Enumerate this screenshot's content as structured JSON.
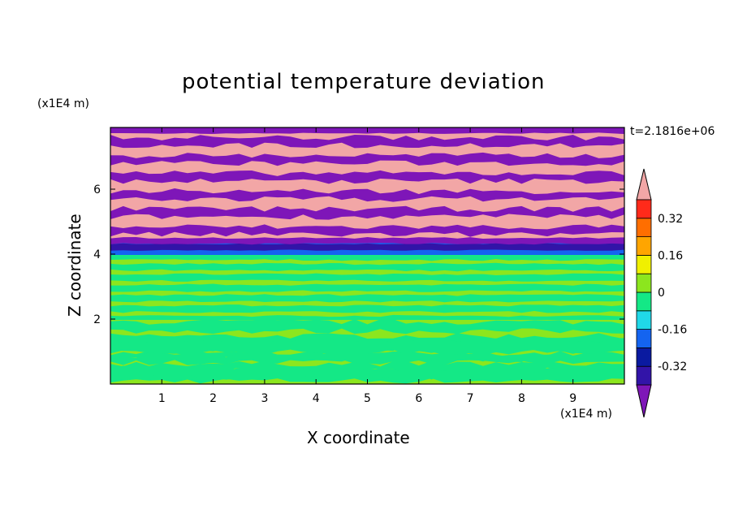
{
  "chart_data": {
    "type": "heatmap",
    "title": "potential temperature deviation",
    "xlabel": "X coordinate",
    "ylabel": "Z coordinate",
    "x_multiplier": "(x1E4 m)",
    "y_multiplier": "(x1E4 m)",
    "time_label": "t=2.1816e+06",
    "xlim": [
      0,
      10
    ],
    "ylim": [
      0,
      7.9
    ],
    "x_ticks": [
      "1",
      "2",
      "3",
      "4",
      "5",
      "6",
      "7",
      "8",
      "9"
    ],
    "y_ticks": [
      "2",
      "4",
      "6"
    ],
    "colorbar": {
      "labels": [
        "0.32",
        "0.16",
        "0",
        "-0.16",
        "-0.32"
      ],
      "levels": [
        -0.48,
        -0.4,
        -0.32,
        -0.24,
        -0.16,
        -0.08,
        0,
        0.08,
        0.16,
        0.24,
        0.32,
        0.4,
        0.48
      ],
      "colors": [
        "#7e16b8",
        "#3214a8",
        "#0a1aa0",
        "#1464f0",
        "#20d8e8",
        "#14e886",
        "#8ce61e",
        "#f0f000",
        "#ffa500",
        "#ff6e00",
        "#ff2a1a",
        "#f2a6a6"
      ],
      "extend": "both"
    },
    "field_summary": [
      {
        "z_range": [
          0,
          2.0
        ],
        "pattern": "mix",
        "colors": [
          "#8ce61e",
          "#14e886"
        ]
      },
      {
        "z_range": [
          2.0,
          4.0
        ],
        "pattern": "bands",
        "colors": [
          "#14e886",
          "#8ce61e"
        ]
      },
      {
        "z_range": [
          4.0,
          4.5
        ],
        "pattern": "bands",
        "colors": [
          "#1464f0",
          "#3214a8",
          "#7e16b8"
        ]
      },
      {
        "z_range": [
          4.5,
          7.9
        ],
        "pattern": "stripes",
        "colors": [
          "#f2a6a6",
          "#7e16b8"
        ]
      }
    ]
  }
}
